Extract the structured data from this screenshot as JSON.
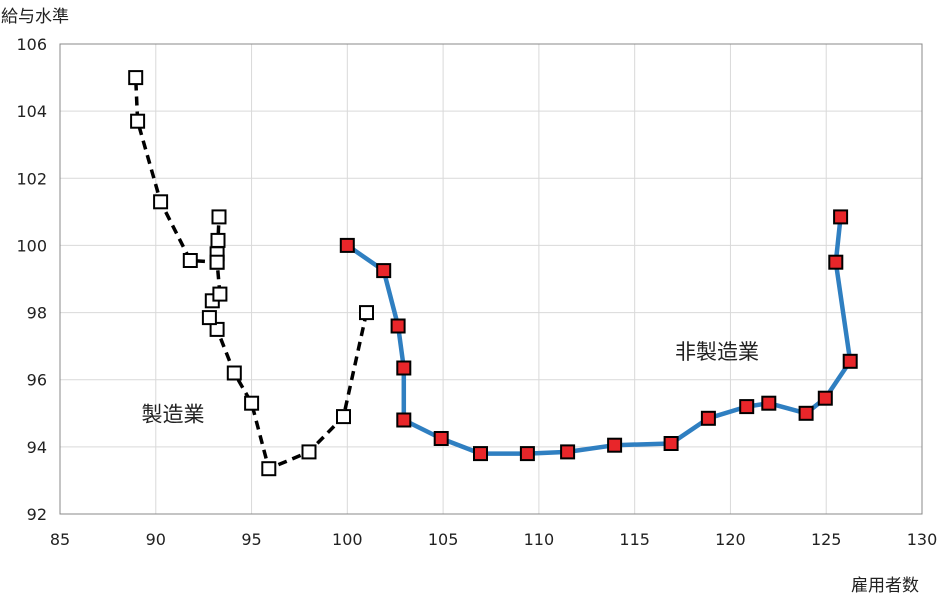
{
  "chart_data": {
    "type": "scatter",
    "title": "",
    "xlabel": "雇用者数",
    "ylabel": "給与水準",
    "xlim": [
      85,
      130
    ],
    "ylim": [
      92,
      106
    ],
    "x_ticks": [
      "85",
      "90",
      "95",
      "100",
      "105",
      "110",
      "115",
      "120",
      "125",
      "130"
    ],
    "y_ticks": [
      "92",
      "94",
      "96",
      "98",
      "100",
      "102",
      "104",
      "106"
    ],
    "grid": true,
    "series": [
      {
        "name": "製造業",
        "style": "dashed-black-hollow-squares",
        "line_color": "#000000",
        "marker_fill": "#ffffff",
        "marker_stroke": "#000000",
        "points": [
          [
            101.0,
            98.0
          ],
          [
            99.8,
            94.9
          ],
          [
            98.0,
            93.85
          ],
          [
            95.9,
            93.35
          ],
          [
            95.0,
            95.3
          ],
          [
            94.1,
            96.2
          ],
          [
            93.2,
            97.5
          ],
          [
            92.8,
            97.85
          ],
          [
            92.95,
            98.35
          ],
          [
            93.35,
            98.55
          ],
          [
            93.2,
            99.5
          ],
          [
            93.2,
            99.75
          ],
          [
            93.25,
            100.15
          ],
          [
            93.3,
            100.85
          ],
          [
            93.2,
            99.5
          ],
          [
            91.8,
            99.55
          ],
          [
            90.25,
            101.3
          ],
          [
            89.05,
            103.7
          ],
          [
            88.95,
            105.0
          ]
        ]
      },
      {
        "name": "非製造業",
        "style": "solid-blue-red-squares",
        "line_color": "#2f7fc1",
        "marker_fill": "#e8262a",
        "marker_stroke": "#000000",
        "points": [
          [
            100.0,
            100.0
          ],
          [
            101.9,
            99.25
          ],
          [
            102.65,
            97.6
          ],
          [
            102.95,
            96.35
          ],
          [
            102.95,
            94.8
          ],
          [
            104.9,
            94.25
          ],
          [
            106.95,
            93.8
          ],
          [
            109.4,
            93.8
          ],
          [
            111.5,
            93.85
          ],
          [
            113.95,
            94.05
          ],
          [
            116.9,
            94.1
          ],
          [
            118.85,
            94.85
          ],
          [
            120.85,
            95.2
          ],
          [
            122.0,
            95.3
          ],
          [
            123.95,
            95.0
          ],
          [
            124.95,
            95.45
          ],
          [
            126.25,
            96.55
          ],
          [
            125.5,
            99.5
          ],
          [
            125.75,
            100.85
          ]
        ]
      }
    ],
    "annotations": [
      {
        "text": "製造業",
        "x": 90.9,
        "y": 95.0
      },
      {
        "text": "非製造業",
        "x": 119.3,
        "y": 96.85
      }
    ]
  }
}
